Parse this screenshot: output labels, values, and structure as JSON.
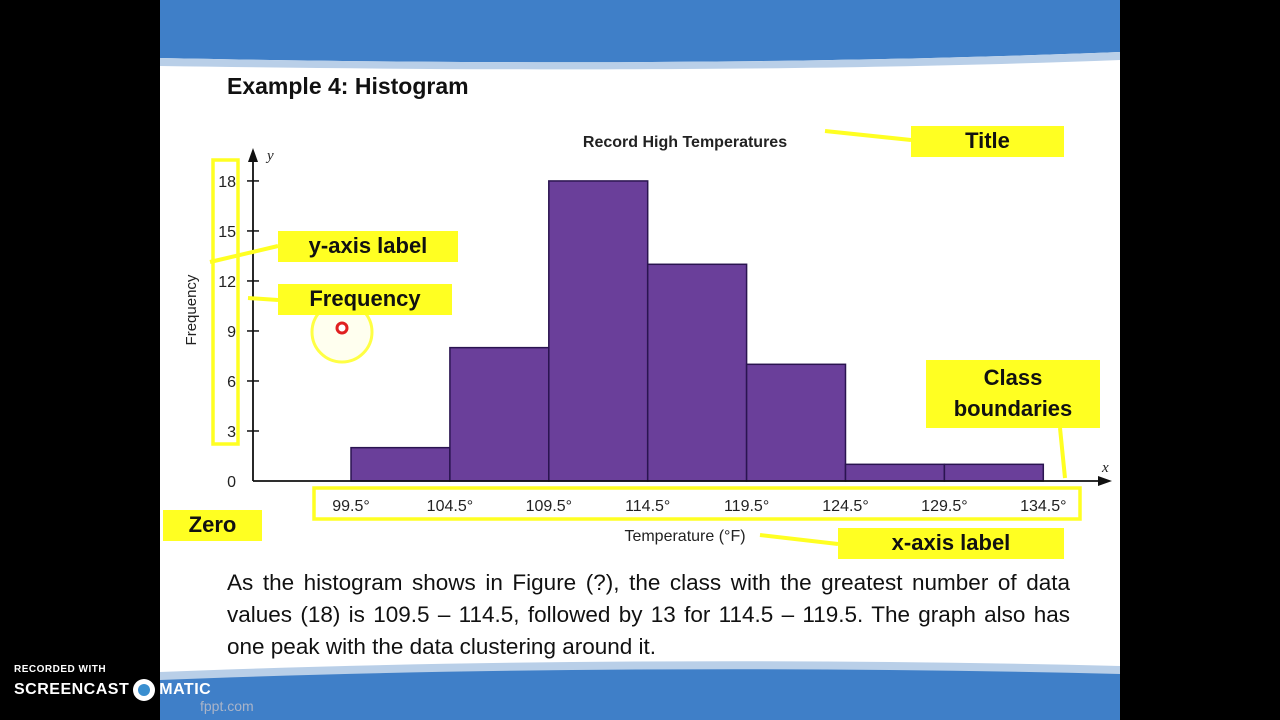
{
  "slide": {
    "title": "Example 4: Histogram",
    "body_text": "As the histogram shows in Figure (?), the class with the greatest number of data values (18) is 109.5 – 114.5, followed by 13 for 114.5 – 119.5. The graph also has one peak with the data clustering around it.",
    "footer_site": "fppt.com"
  },
  "callouts": {
    "title": "Title",
    "y_axis_label": "y-axis label",
    "frequency": "Frequency",
    "class_boundaries": "Class boundaries",
    "zero": "Zero",
    "x_axis_label": "x-axis label"
  },
  "recorder": {
    "small": "RECORDED WITH",
    "brand_left": "SCREENCAST",
    "brand_right": "MATIC"
  },
  "colors": {
    "bar_fill": "#6a3f9a",
    "bar_stroke": "#2a1450",
    "highlight": "#ffff22",
    "header": "#3f7fc8"
  },
  "chart_data": {
    "type": "bar",
    "title": "Record High Temperatures",
    "xlabel": "Temperature (°F)",
    "ylabel": "Frequency",
    "x_axis_letter": "x",
    "y_axis_letter": "y",
    "boundaries": [
      "99.5°",
      "104.5°",
      "109.5°",
      "114.5°",
      "119.5°",
      "124.5°",
      "129.5°",
      "134.5°"
    ],
    "values": [
      2,
      8,
      18,
      13,
      7,
      1,
      1
    ],
    "y_ticks": [
      0,
      3,
      6,
      9,
      12,
      15,
      18
    ],
    "ylim": [
      0,
      18
    ]
  }
}
